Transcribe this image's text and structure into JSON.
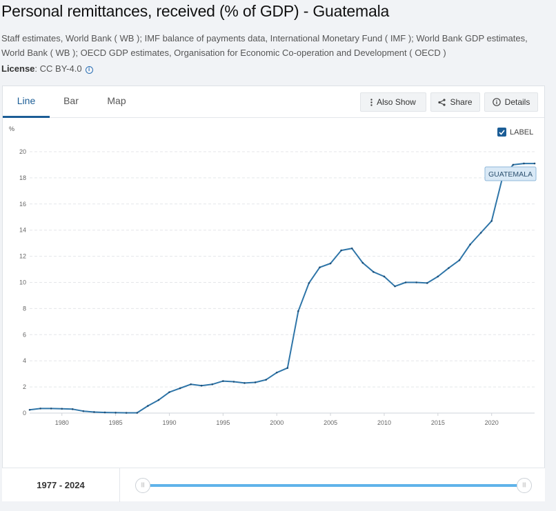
{
  "header": {
    "title": "Personal remittances, received (% of GDP) - Guatemala",
    "source": "Staff estimates, World Bank ( WB ); IMF balance of payments data, International Monetary Fund ( IMF ); World Bank GDP estimates, World Bank ( WB ); OECD GDP estimates, Organisation for Economic Co-operation and Development ( OECD )",
    "license_label": "License",
    "license_value": ": CC BY-4.0"
  },
  "tabs": [
    {
      "label": "Line"
    },
    {
      "label": "Bar"
    },
    {
      "label": "Map"
    }
  ],
  "toolbar": {
    "also_show": "Also Show",
    "share": "Share",
    "details": "Details"
  },
  "label_toggle": "LABEL",
  "range": {
    "start": "1977",
    "sep": "-",
    "end": "2024"
  },
  "colors": {
    "line": "#2e75a8",
    "accent": "#1b5d96",
    "slider": "#5fb3ea"
  },
  "chart_data": {
    "type": "line",
    "ylabel": "%",
    "xlim": [
      1977,
      2024
    ],
    "ylim": [
      0,
      20
    ],
    "yticks": [
      0,
      2,
      4,
      6,
      8,
      10,
      12,
      14,
      16,
      18,
      20
    ],
    "xticks": [
      1980,
      1985,
      1990,
      1995,
      2000,
      2005,
      2010,
      2015,
      2020
    ],
    "grid": true,
    "series_label": "GUATEMALA",
    "series": [
      {
        "x": [
          1977,
          1978,
          1979,
          1980,
          1981,
          1982,
          1983,
          1984,
          1985,
          1986,
          1987,
          1988,
          1989,
          1990,
          1991,
          1992,
          1993,
          1994,
          1995,
          1996,
          1997,
          1998,
          1999,
          2000,
          2001,
          2002,
          2003,
          2004,
          2005,
          2006,
          2007,
          2008,
          2009,
          2010,
          2011,
          2012,
          2013,
          2014,
          2015,
          2016,
          2017,
          2018,
          2019,
          2020,
          2021,
          2022,
          2023,
          2024
        ],
        "values": [
          0.25,
          0.35,
          0.35,
          0.33,
          0.3,
          0.15,
          0.08,
          0.05,
          0.03,
          0.02,
          0.02,
          0.55,
          1.0,
          1.6,
          1.9,
          2.2,
          2.1,
          2.2,
          2.45,
          2.4,
          2.3,
          2.35,
          2.55,
          3.1,
          3.45,
          7.8,
          9.95,
          11.15,
          11.45,
          12.45,
          12.6,
          11.5,
          10.8,
          10.45,
          9.7,
          10.0,
          10.0,
          9.95,
          10.45,
          11.1,
          11.7,
          12.9,
          13.8,
          14.7,
          18.0,
          19.0,
          19.1,
          19.1
        ]
      }
    ]
  }
}
